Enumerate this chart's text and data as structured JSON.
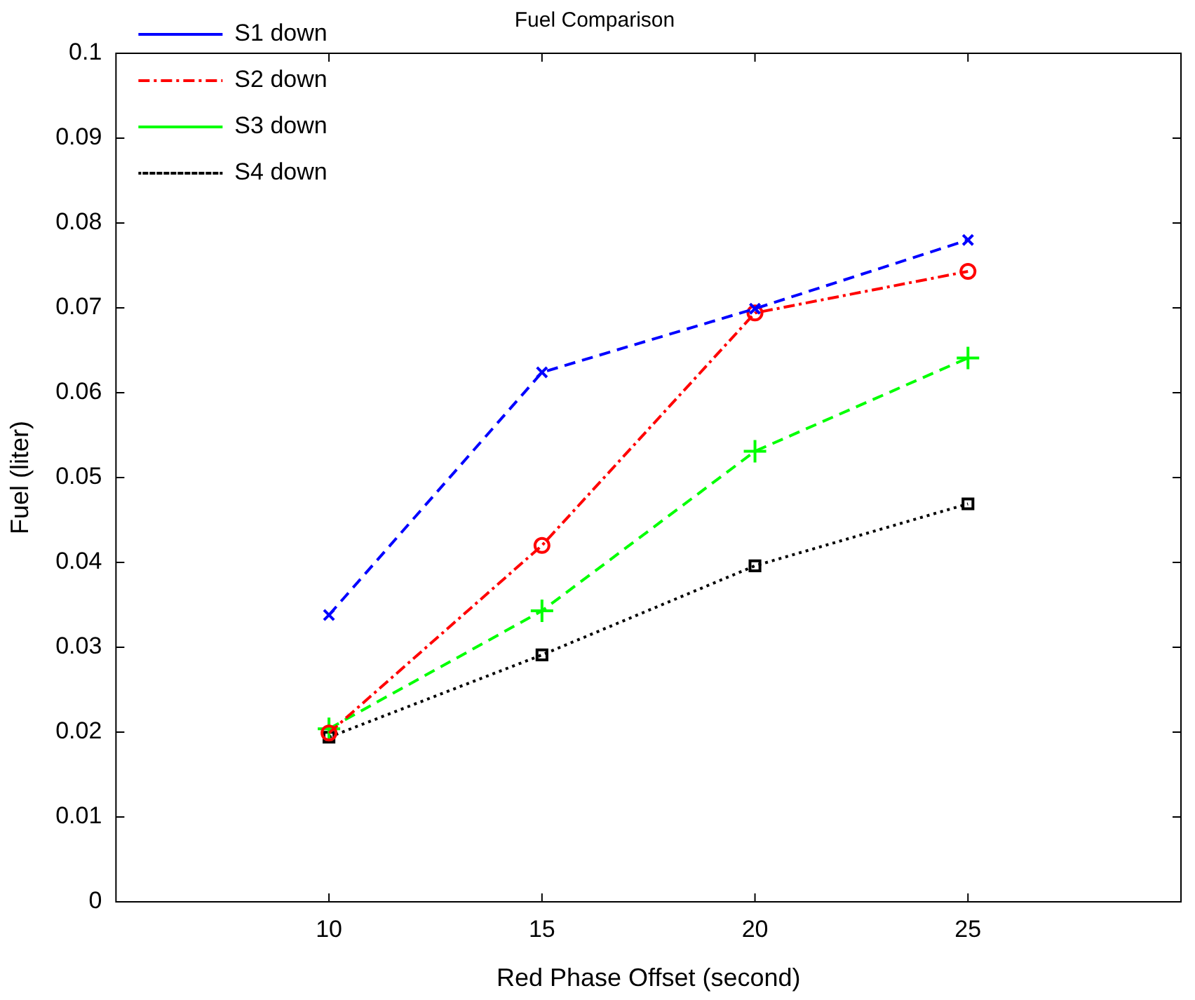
{
  "chart_data": {
    "type": "line",
    "title": "Fuel Comparison",
    "xlabel": "Red Phase Offset (second)",
    "ylabel": "Fuel (liter)",
    "x": [
      10,
      15,
      20,
      25
    ],
    "series": [
      {
        "name": "S1 down",
        "color": "#0000ff",
        "marker": "x",
        "line_style": "dashed",
        "values": [
          0.0338,
          0.0624,
          0.0699,
          0.078
        ]
      },
      {
        "name": "S2 down",
        "color": "#ff0000",
        "marker": "circle",
        "line_style": "dashdot",
        "values": [
          0.0199,
          0.042,
          0.0694,
          0.0743
        ]
      },
      {
        "name": "S3 down",
        "color": "#00ff00",
        "marker": "cross",
        "line_style": "dashed",
        "values": [
          0.0204,
          0.0343,
          0.0531,
          0.0641
        ]
      },
      {
        "name": "S4 down",
        "color": "#000000",
        "marker": "square",
        "line_style": "dotted",
        "values": [
          0.0194,
          0.0291,
          0.0396,
          0.0469
        ]
      }
    ],
    "xlim": [
      5,
      30
    ],
    "xticks": [
      10,
      15,
      20,
      25
    ],
    "ylim": [
      0,
      0.1
    ],
    "yticks": [
      0,
      0.01,
      0.02,
      0.03,
      0.04,
      0.05,
      0.06,
      0.07,
      0.08,
      0.09,
      0.1
    ],
    "grid": false,
    "legend": "top left"
  }
}
